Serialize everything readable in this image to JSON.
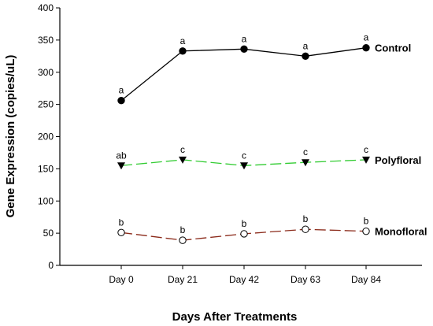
{
  "chart_data": {
    "type": "line",
    "categories": [
      "Day 0",
      "Day 21",
      "Day 42",
      "Day 63",
      "Day 84"
    ],
    "xlabel": "Days After Treatments",
    "ylabel": "Gene Expression (copies/uL)",
    "ylim": [
      0,
      400
    ],
    "yticks": [
      0,
      50,
      100,
      150,
      200,
      250,
      300,
      350,
      400
    ],
    "grid": false,
    "series": [
      {
        "name": "Control",
        "values": [
          256,
          333,
          336,
          325,
          338
        ],
        "labels": [
          "a",
          "a",
          "a",
          "a",
          "a"
        ],
        "marker": "filled-circle",
        "line_style": "solid",
        "color": "#000000"
      },
      {
        "name": "Polyfloral",
        "values": [
          155,
          164,
          155,
          160,
          164
        ],
        "labels": [
          "ab",
          "c",
          "c",
          "c",
          "c"
        ],
        "marker": "filled-down-triangle",
        "line_style": "dashed",
        "color": "#33cc33"
      },
      {
        "name": "Monofloral",
        "values": [
          51,
          39,
          49,
          56,
          53
        ],
        "labels": [
          "b",
          "b",
          "b",
          "b",
          "b"
        ],
        "marker": "open-circle",
        "line_style": "dashed",
        "color": "#8b2a1a"
      }
    ]
  }
}
